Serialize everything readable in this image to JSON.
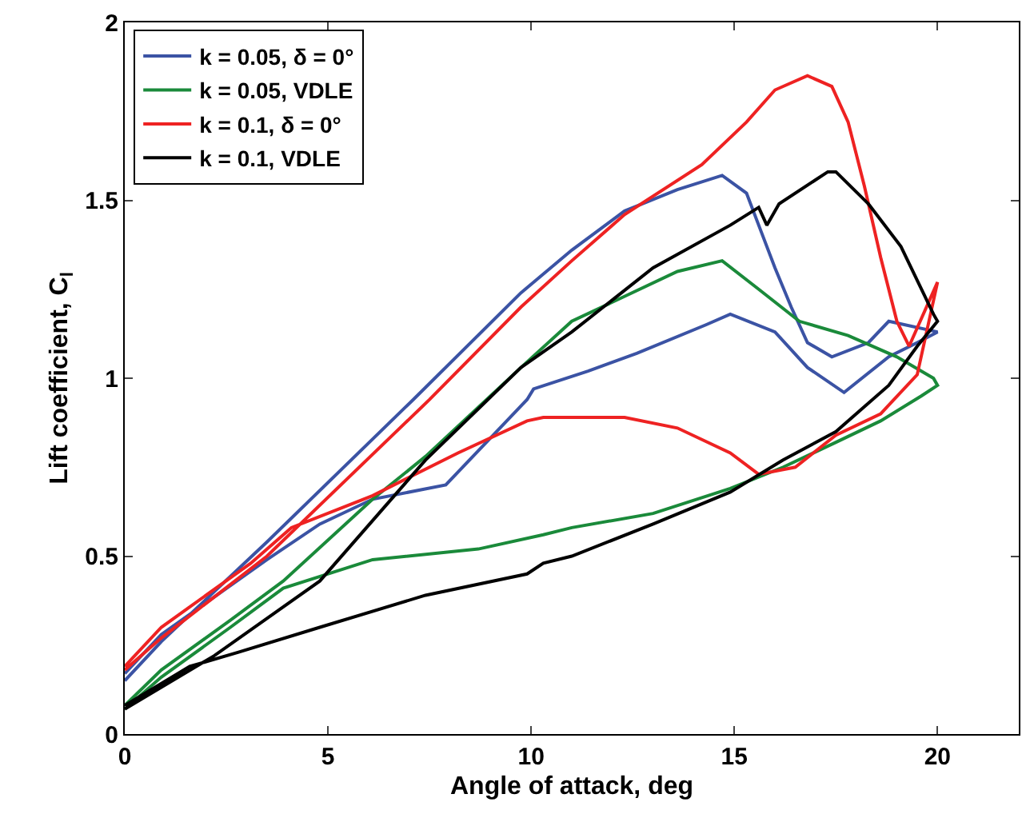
{
  "chart_data": {
    "type": "line",
    "xlabel": "Angle of attack, deg",
    "ylabel": "Lift coefficient, C$_{l}$",
    "xlim": [
      0,
      22
    ],
    "ylim": [
      0,
      2
    ],
    "xticks": [
      0,
      5,
      10,
      15,
      20
    ],
    "yticks": [
      0,
      0.5,
      1,
      1.5,
      2
    ],
    "legend": "top left",
    "marker": "none",
    "line_style": "solid",
    "series": [
      {
        "name": "k = 0.05, δ = 0°",
        "color": "#3b53a4",
        "x": [
          0,
          0.9,
          3.5,
          7.1,
          9.75,
          11.0,
          12.3,
          13.6,
          14.7,
          15.3,
          15.6,
          16.0,
          16.4,
          16.8,
          17.4,
          18.3,
          18.8,
          20,
          19.5,
          18.8,
          17.7,
          16.8,
          16.0,
          14.9,
          14.3,
          12.6,
          11.4,
          10.06,
          9.9,
          7.9,
          6.1,
          4.8,
          3.5,
          0.9,
          0
        ],
        "values": [
          0.15,
          0.26,
          0.54,
          0.94,
          1.24,
          1.36,
          1.47,
          1.53,
          1.57,
          1.52,
          1.43,
          1.31,
          1.2,
          1.1,
          1.06,
          1.1,
          1.16,
          1.13,
          1.1,
          1.06,
          0.96,
          1.03,
          1.13,
          1.18,
          1.15,
          1.07,
          1.02,
          0.97,
          0.94,
          0.7,
          0.66,
          0.59,
          0.49,
          0.28,
          0.17
        ]
      },
      {
        "name": "k = 0.05, VDLE",
        "color": "#1a8a3a",
        "x": [
          0,
          0.9,
          2.6,
          3.9,
          6.1,
          7.4,
          9.75,
          11.0,
          13.6,
          14.7,
          15.6,
          16.6,
          17.8,
          19.0,
          19.9,
          20,
          19.6,
          18.6,
          17.5,
          16.2,
          14.9,
          13.0,
          11.0,
          10.3,
          8.7,
          6.1,
          3.9,
          2.6,
          0.9,
          0
        ],
        "values": [
          0.08,
          0.18,
          0.32,
          0.43,
          0.66,
          0.78,
          1.03,
          1.16,
          1.3,
          1.33,
          1.25,
          1.16,
          1.12,
          1.06,
          1.0,
          0.98,
          0.95,
          0.88,
          0.82,
          0.75,
          0.69,
          0.62,
          0.58,
          0.56,
          0.52,
          0.49,
          0.41,
          0.3,
          0.16,
          0.07
        ]
      },
      {
        "name": "k = 0.1, δ = 0°",
        "color": "#ee2222",
        "x": [
          0,
          0.9,
          3.5,
          7.5,
          9.75,
          11.0,
          12.3,
          14.2,
          15.3,
          16.0,
          16.8,
          17.4,
          17.8,
          18.2,
          18.6,
          19.0,
          19.3,
          20,
          19.5,
          18.6,
          17.5,
          16.5,
          15.6,
          14.9,
          13.6,
          12.3,
          11.0,
          10.3,
          9.9,
          8.2,
          6.1,
          4.1,
          3.1,
          0.9,
          0
        ],
        "values": [
          0.18,
          0.27,
          0.5,
          0.94,
          1.2,
          1.33,
          1.46,
          1.6,
          1.72,
          1.81,
          1.85,
          1.82,
          1.72,
          1.54,
          1.34,
          1.16,
          1.09,
          1.27,
          1.01,
          0.9,
          0.84,
          0.75,
          0.73,
          0.79,
          0.86,
          0.89,
          0.89,
          0.89,
          0.88,
          0.79,
          0.67,
          0.58,
          0.48,
          0.3,
          0.19
        ]
      },
      {
        "name": "k = 0.1, VDLE",
        "color": "#000000",
        "x": [
          0,
          2.2,
          4.8,
          7.4,
          9.75,
          11.0,
          13.0,
          14.9,
          15.6,
          15.8,
          16.1,
          17.3,
          17.5,
          18.3,
          19.1,
          19.9,
          20,
          19.5,
          18.8,
          17.5,
          16.2,
          14.9,
          13.0,
          11.0,
          10.3,
          9.9,
          7.4,
          4.8,
          2.8,
          1.6,
          0
        ],
        "values": [
          0.07,
          0.22,
          0.43,
          0.77,
          1.03,
          1.13,
          1.31,
          1.43,
          1.48,
          1.43,
          1.49,
          1.58,
          1.58,
          1.49,
          1.37,
          1.18,
          1.16,
          1.09,
          0.98,
          0.85,
          0.77,
          0.68,
          0.59,
          0.5,
          0.48,
          0.45,
          0.39,
          0.3,
          0.23,
          0.19,
          0.08
        ]
      }
    ]
  }
}
